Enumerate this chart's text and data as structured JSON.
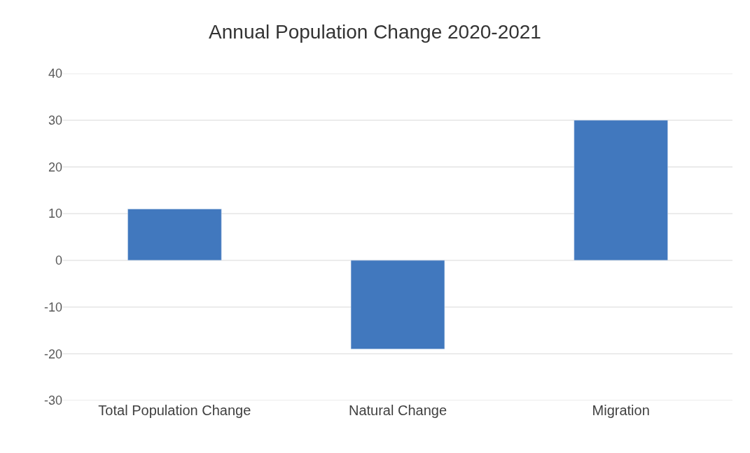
{
  "chart_data": {
    "type": "bar",
    "title": "Annual Population Change 2020-2021",
    "categories": [
      "Total Population Change",
      "Natural Change",
      "Migration"
    ],
    "values": [
      11,
      -19,
      30
    ],
    "color": "#4178be",
    "ylim": [
      -30,
      40
    ],
    "yticks": [
      -30,
      -20,
      -10,
      0,
      10,
      20,
      30,
      40
    ],
    "grid": "y",
    "legend": false
  }
}
